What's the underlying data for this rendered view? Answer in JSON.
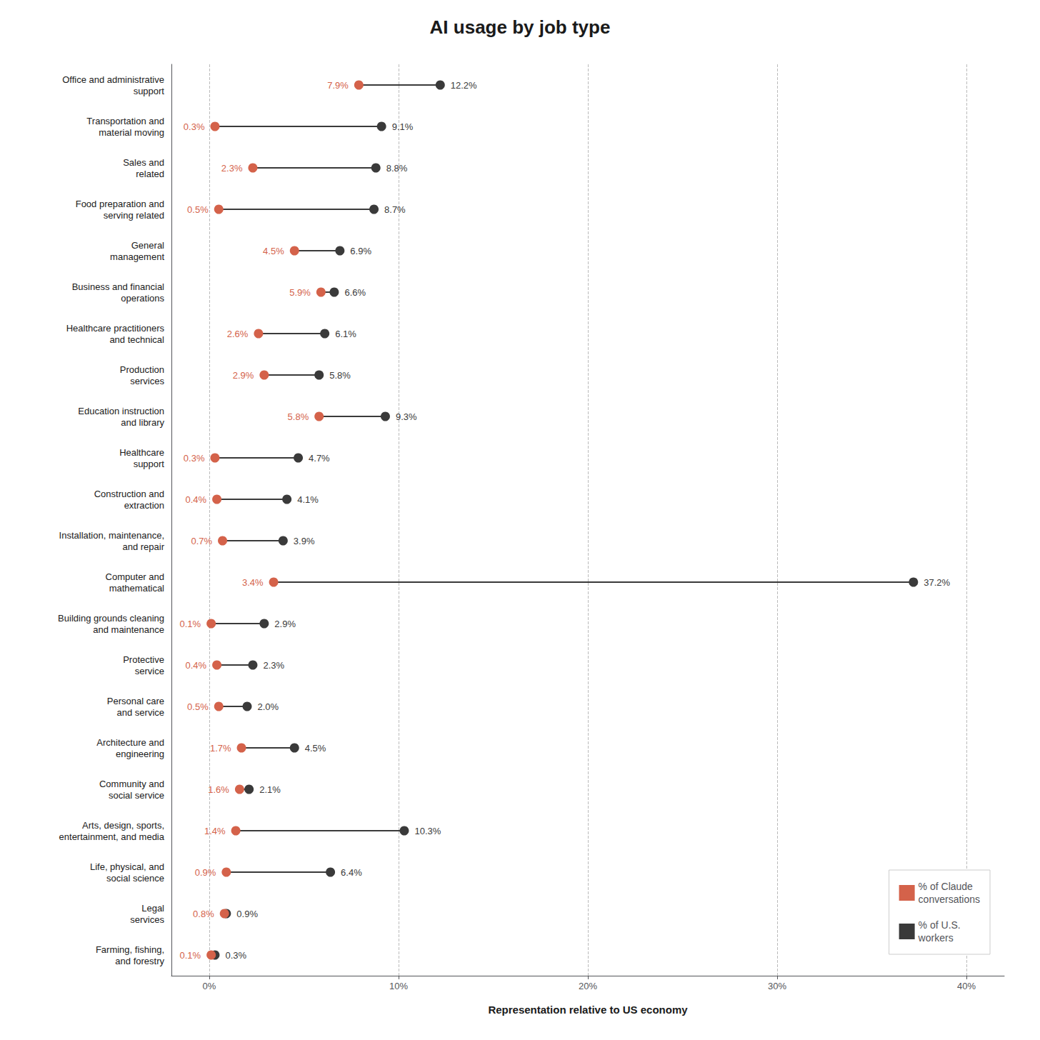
{
  "chart_data": {
    "type": "dumbbell",
    "title": "AI usage by job type",
    "xlabel": "Representation relative to US economy",
    "orientation": "horizontal",
    "categories": [
      "Office and administrative\nsupport",
      "Transportation and\nmaterial moving",
      "Sales and\nrelated",
      "Food preparation and\nserving related",
      "General\nmanagement",
      "Business and financial\noperations",
      "Healthcare practitioners\nand technical",
      "Production\nservices",
      "Education instruction\nand library",
      "Healthcare\nsupport",
      "Construction and\nextraction",
      "Installation, maintenance,\nand repair",
      "Computer and\nmathematical",
      "Building grounds cleaning\nand maintenance",
      "Protective\nservice",
      "Personal care\nand service",
      "Architecture and\nengineering",
      "Community and\nsocial service",
      "Arts, design, sports,\nentertainment, and media",
      "Life, physical, and\nsocial science",
      "Legal\nservices",
      "Farming, fishing,\nand forestry"
    ],
    "series": [
      {
        "name": "% of Claude\nconversations",
        "color": "#D4624A",
        "values": [
          7.9,
          0.3,
          2.3,
          0.5,
          4.5,
          5.9,
          2.6,
          2.9,
          5.8,
          0.3,
          0.4,
          0.7,
          3.4,
          0.1,
          0.4,
          0.5,
          1.7,
          1.6,
          1.4,
          0.9,
          0.8,
          0.1
        ],
        "value_labels": [
          "7.9%",
          "0.3%",
          "2.3%",
          "0.5%",
          "4.5%",
          "5.9%",
          "2.6%",
          "2.9%",
          "5.8%",
          "0.3%",
          "0.4%",
          "0.7%",
          "3.4%",
          "0.1%",
          "0.4%",
          "0.5%",
          "1.7%",
          "1.6%",
          "1.4%",
          "0.9%",
          "0.8%",
          "0.1%"
        ]
      },
      {
        "name": "% of U.S.\nworkers",
        "color": "#3A3A3A",
        "values": [
          12.2,
          9.1,
          8.8,
          8.7,
          6.9,
          6.6,
          6.1,
          5.8,
          9.3,
          4.7,
          4.1,
          3.9,
          37.2,
          2.9,
          2.3,
          2.0,
          4.5,
          2.1,
          10.3,
          6.4,
          0.9,
          0.3
        ],
        "value_labels": [
          "12.2%",
          "9.1%",
          "8.8%",
          "8.7%",
          "6.9%",
          "6.6%",
          "6.1%",
          "5.8%",
          "9.3%",
          "4.7%",
          "4.1%",
          "3.9%",
          "37.2%",
          "2.9%",
          "2.3%",
          "2.0%",
          "4.5%",
          "2.1%",
          "10.3%",
          "6.4%",
          "0.9%",
          "0.3%"
        ]
      }
    ],
    "xlim": [
      -2,
      42
    ],
    "xticks": [
      {
        "value": 0,
        "label": "0%"
      },
      {
        "value": 10,
        "label": "10%"
      },
      {
        "value": 20,
        "label": "20%"
      },
      {
        "value": 30,
        "label": "30%"
      },
      {
        "value": 40,
        "label": "40%"
      }
    ],
    "grid": true,
    "legend": "lower right",
    "data_labels": true
  }
}
